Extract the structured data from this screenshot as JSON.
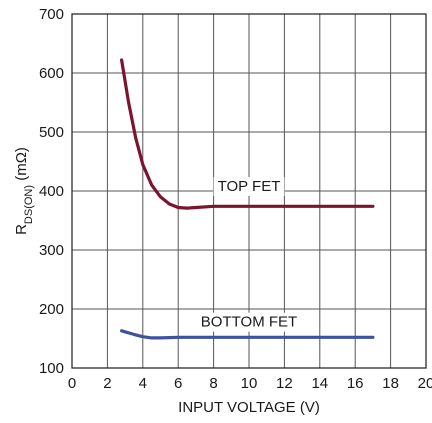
{
  "chart_data": {
    "type": "line",
    "xlabel": "INPUT VOLTAGE (V)",
    "ylabel": {
      "main": "R",
      "sub": "DS(ON)",
      "unit": " (mΩ)"
    },
    "xlim": [
      0,
      20
    ],
    "ylim": [
      100,
      700
    ],
    "x_ticks": [
      0,
      2,
      4,
      6,
      8,
      10,
      12,
      14,
      16,
      18,
      20
    ],
    "y_ticks": [
      100,
      200,
      300,
      400,
      500,
      600,
      700
    ],
    "grid": true,
    "series": [
      {
        "name": "TOP FET",
        "color": "#7a1530",
        "x": [
          2.8,
          3.2,
          3.6,
          4.0,
          4.5,
          5.0,
          5.5,
          6.0,
          6.5,
          7.0,
          8.0,
          9.0,
          10,
          12,
          14,
          16,
          17
        ],
        "y": [
          622,
          550,
          490,
          445,
          410,
          390,
          378,
          372,
          371,
          372,
          374,
          374,
          374,
          374,
          374,
          374,
          374
        ]
      },
      {
        "name": "BOTTOM FET",
        "color": "#3c52a0",
        "x": [
          2.8,
          3.5,
          4.0,
          4.5,
          5.0,
          6.0,
          8.0,
          10,
          12,
          14,
          16,
          17
        ],
        "y": [
          163,
          157,
          153,
          151,
          151,
          152,
          152,
          152,
          152,
          152,
          152,
          152
        ]
      }
    ],
    "annotations": [
      {
        "text": "TOP FET",
        "series": "TOP FET",
        "x": 10,
        "y": 400
      },
      {
        "text": "BOTTOM FET",
        "series": "BOTTOM FET",
        "x": 10,
        "y": 170
      }
    ]
  }
}
